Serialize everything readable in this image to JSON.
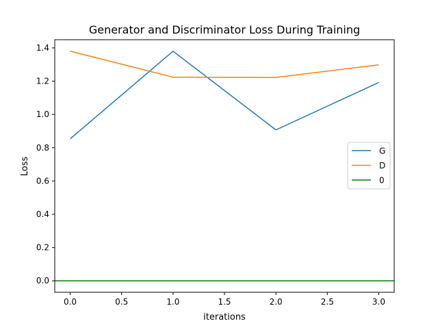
{
  "chart_data": {
    "type": "line",
    "title": "Generator and Discriminator Loss During Training",
    "xlabel": "iterations",
    "ylabel": "Loss",
    "xlim": [
      -0.15,
      3.15
    ],
    "ylim": [
      -0.069,
      1.449
    ],
    "xticks": [
      0.0,
      0.5,
      1.0,
      1.5,
      2.0,
      2.5,
      3.0
    ],
    "xtick_labels": [
      "0.0",
      "0.5",
      "1.0",
      "1.5",
      "2.0",
      "2.5",
      "3.0"
    ],
    "yticks": [
      0.0,
      0.2,
      0.4,
      0.6,
      0.8,
      1.0,
      1.2,
      1.4
    ],
    "ytick_labels": [
      "0.0",
      "0.2",
      "0.4",
      "0.6",
      "0.8",
      "1.0",
      "1.2",
      "1.4"
    ],
    "grid": false,
    "legend_position": "center-right",
    "series": [
      {
        "name": "G",
        "color": "#1f77b4",
        "x": [
          0,
          1,
          2,
          3
        ],
        "values": [
          0.853,
          1.38,
          0.907,
          1.192
        ]
      },
      {
        "name": "D",
        "color": "#ff7f0e",
        "x": [
          0,
          1,
          2,
          3
        ],
        "values": [
          1.38,
          1.224,
          1.222,
          1.298
        ]
      },
      {
        "name": "0",
        "color": "#008000",
        "type": "hline",
        "values": [
          0
        ]
      }
    ]
  }
}
